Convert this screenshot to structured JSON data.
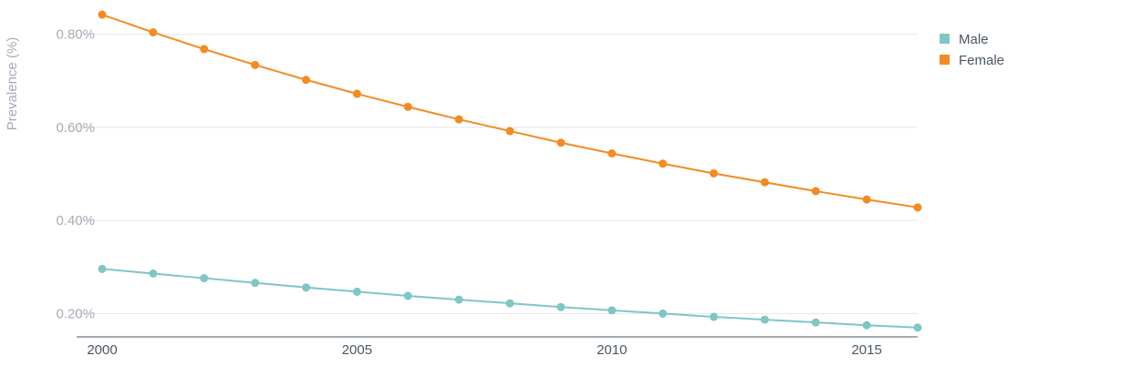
{
  "chart_data": {
    "type": "line",
    "title": "",
    "xlabel": "",
    "ylabel": "Prevalence (%)",
    "x": [
      2000,
      2001,
      2002,
      2003,
      2004,
      2005,
      2006,
      2007,
      2008,
      2009,
      2010,
      2011,
      2012,
      2013,
      2014,
      2015,
      2016
    ],
    "x_ticks": [
      "2000",
      "2005",
      "2010",
      "2015"
    ],
    "y_ticks": [
      {
        "value": 0.2,
        "label": "0.20%"
      },
      {
        "value": 0.4,
        "label": "0.40%"
      },
      {
        "value": 0.6,
        "label": "0.60%"
      },
      {
        "value": 0.8,
        "label": "0.80%"
      }
    ],
    "xlim": [
      2000,
      2016
    ],
    "ylim": [
      0.15,
      0.85
    ],
    "grid": "horizontal",
    "legend": "top-right",
    "series": [
      {
        "name": "Male",
        "color": "#7fc6c6",
        "values": [
          0.296,
          0.286,
          0.276,
          0.266,
          0.256,
          0.247,
          0.238,
          0.23,
          0.222,
          0.214,
          0.207,
          0.2,
          0.193,
          0.187,
          0.181,
          0.175,
          0.17
        ]
      },
      {
        "name": "Female",
        "color": "#f38b21",
        "values": [
          0.842,
          0.804,
          0.768,
          0.734,
          0.702,
          0.672,
          0.644,
          0.617,
          0.592,
          0.567,
          0.544,
          0.522,
          0.501,
          0.482,
          0.463,
          0.445,
          0.428
        ]
      }
    ]
  }
}
